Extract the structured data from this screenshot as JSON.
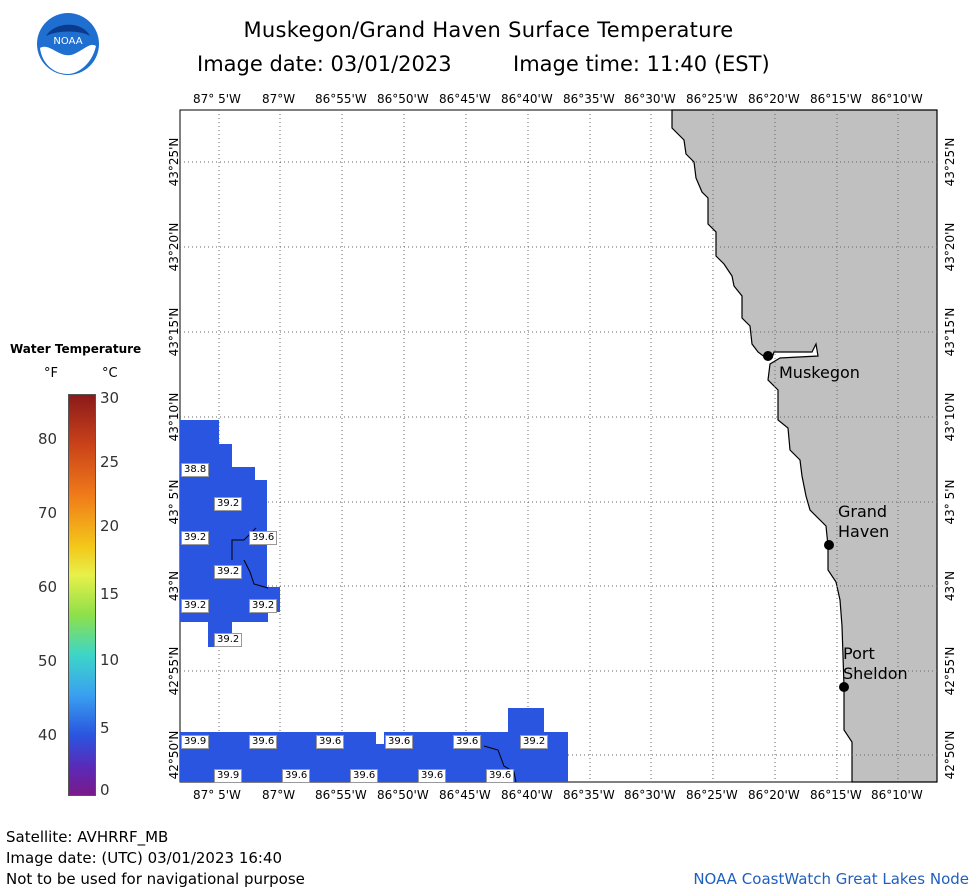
{
  "header": {
    "title": "Muskegon/Grand Haven Surface Temperature",
    "image_date": "Image date: 03/01/2023",
    "image_time": "Image time: 11:40 (EST)"
  },
  "logo": {
    "text": "NOAA",
    "icon": "noaa-logo"
  },
  "legend": {
    "title": "Water Temperature",
    "unit_f": "°F",
    "unit_c": "°C",
    "f_ticks": [
      "80",
      "70",
      "60",
      "50",
      "40"
    ],
    "c_ticks": [
      "30",
      "25",
      "20",
      "15",
      "10",
      "5",
      "0"
    ]
  },
  "map": {
    "lon_labels_top": [
      "87° 5'W",
      "87°W",
      "86°55'W",
      "86°50'W",
      "86°45'W",
      "86°40'W",
      "86°35'W",
      "86°30'W",
      "86°25'W",
      "86°20'W",
      "86°15'W",
      "86°10'W"
    ],
    "lon_labels_bottom": [
      "87° 5'W",
      "87°W",
      "86°55'W",
      "86°50'W",
      "86°45'W",
      "86°40'W",
      "86°35'W",
      "86°30'W",
      "86°25'W",
      "86°20'W",
      "86°15'W",
      "86°10'W"
    ],
    "lat_labels": [
      "43°25'N",
      "43°20'N",
      "43°15'N",
      "43°10'N",
      "43° 5'N",
      "43°N",
      "42°55'N",
      "42°50'N"
    ],
    "cities": {
      "muskegon": "Muskegon",
      "grand_haven_1": "Grand",
      "grand_haven_2": "Haven",
      "port_sheldon_1": "Port",
      "port_sheldon_2": "Sheldon"
    },
    "colors": {
      "land": "#c0c0c0",
      "water_sst": "#2a55e0",
      "coast": "#000000"
    },
    "sst_values": {
      "v1": "38.8",
      "v2": "39.2",
      "v3": "39.2",
      "v4": "39.6",
      "v5": "39.2",
      "v6": "39.2",
      "v7": "39.2",
      "v8": "39.2",
      "b1": "39.9",
      "b2": "39.6",
      "b3": "39.6",
      "b4": "39.6",
      "b5": "39.6",
      "b6": "39.2",
      "b7": "39.9",
      "b8": "39.6",
      "b9": "39.6",
      "b10": "39.6",
      "b11": "39.6"
    }
  },
  "footer": {
    "satellite": "Satellite: AVHRRF_MB",
    "utc_date": "Image date: (UTC) 03/01/2023  16:40",
    "disclaimer": "Not to be used for navigational purpose",
    "credit": "NOAA CoastWatch Great Lakes Node"
  }
}
